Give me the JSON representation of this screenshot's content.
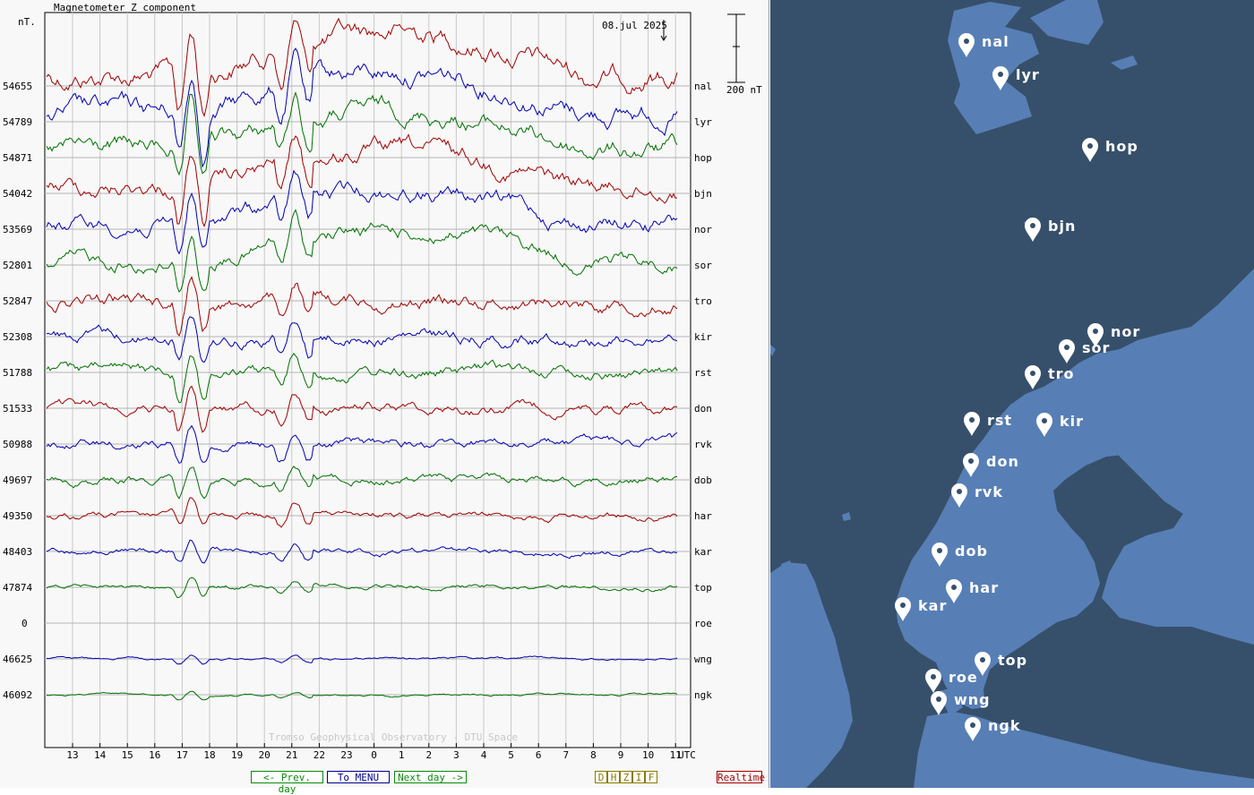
{
  "chart": {
    "title": "Magnetometer Z component",
    "y_unit": "nT.",
    "date_label": "08.jul 2025",
    "scale_label": "200 nT",
    "x_unit_label": "UTC",
    "watermark": "Tromso Geophysical Observatory - DTU Space"
  },
  "chart_data": {
    "type": "line",
    "title": "Magnetometer Z component",
    "ylabel": "nT.",
    "xlabel": "UTC",
    "x_tick_labels": [
      "13",
      "14",
      "15",
      "16",
      "17",
      "18",
      "19",
      "20",
      "21",
      "22",
      "23",
      "0",
      "1",
      "2",
      "3",
      "4",
      "5",
      "6",
      "7",
      "8",
      "9",
      "10",
      "11"
    ],
    "series": [
      {
        "name": "nal",
        "baseline": "54655",
        "color": "#a00000"
      },
      {
        "name": "lyr",
        "baseline": "54789",
        "color": "#0000b0"
      },
      {
        "name": "hop",
        "baseline": "54871",
        "color": "#007000"
      },
      {
        "name": "bjn",
        "baseline": "54042",
        "color": "#a00000"
      },
      {
        "name": "nor",
        "baseline": "53569",
        "color": "#0000b0"
      },
      {
        "name": "sor",
        "baseline": "52801",
        "color": "#007000"
      },
      {
        "name": "tro",
        "baseline": "52847",
        "color": "#a00000"
      },
      {
        "name": "kir",
        "baseline": "52308",
        "color": "#0000b0"
      },
      {
        "name": "rst",
        "baseline": "51788",
        "color": "#007000"
      },
      {
        "name": "don",
        "baseline": "51533",
        "color": "#a00000"
      },
      {
        "name": "rvk",
        "baseline": "50988",
        "color": "#0000b0"
      },
      {
        "name": "dob",
        "baseline": "49697",
        "color": "#007000"
      },
      {
        "name": "har",
        "baseline": "49350",
        "color": "#a00000"
      },
      {
        "name": "kar",
        "baseline": "48403",
        "color": "#0000b0"
      },
      {
        "name": "top",
        "baseline": "47874",
        "color": "#007000"
      },
      {
        "name": "roe",
        "baseline": "0",
        "color": "#a00000"
      },
      {
        "name": "wng",
        "baseline": "46625",
        "color": "#0000b0"
      },
      {
        "name": "ngk",
        "baseline": "46092",
        "color": "#007000"
      }
    ]
  },
  "nav": {
    "prev_label": "<- Prev. day",
    "menu_label": "To MENU",
    "next_label": "Next day ->",
    "d_label": "D",
    "h_label": "H",
    "z_label": "Z",
    "i_label": "I",
    "f_label": "F",
    "realtime_label": "Realtime"
  },
  "map": {
    "stations": [
      "nal",
      "lyr",
      "hop",
      "bjn",
      "nor",
      "sor",
      "tro",
      "rst",
      "kir",
      "don",
      "rvk",
      "dob",
      "har",
      "kar",
      "top",
      "roe",
      "wng",
      "ngk"
    ],
    "sea_color": "#36506b",
    "land_color": "#577fb5"
  }
}
